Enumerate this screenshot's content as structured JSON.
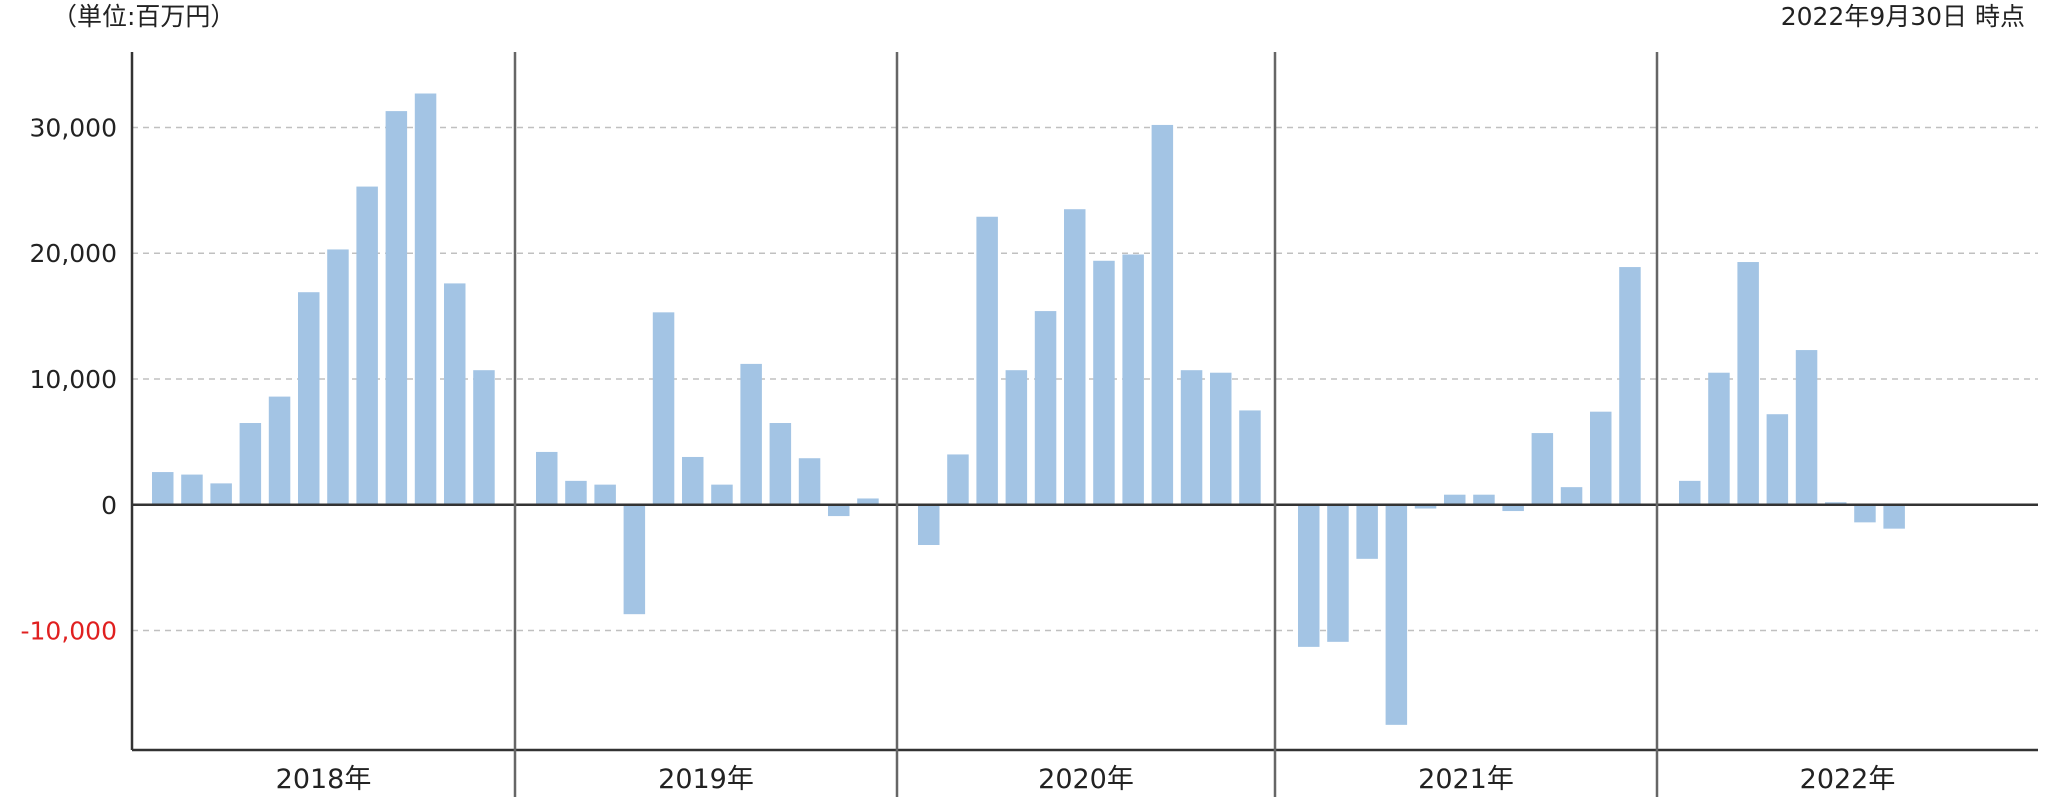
{
  "header": {
    "unit_label": "（単位:百万円）",
    "as_of_label": "2022年9月30日 時点"
  },
  "colors": {
    "bar": "#a3c4e4",
    "axis": "#333333",
    "grid": "#c0c0c0",
    "separator": "#666666",
    "negative_tick": "#e02020",
    "text": "#222222"
  },
  "chart_data": {
    "type": "bar",
    "title": "",
    "xlabel": "",
    "ylabel": "",
    "grid": true,
    "legend": "none",
    "ylim": [
      -19500,
      36000
    ],
    "yticks": [
      {
        "value": 30000,
        "label": "30,000"
      },
      {
        "value": 20000,
        "label": "20,000"
      },
      {
        "value": 10000,
        "label": "10,000"
      },
      {
        "value": 0,
        "label": "0"
      },
      {
        "value": -10000,
        "label": "-10,000"
      }
    ],
    "groups": [
      {
        "label": "2018年",
        "values": [
          2600,
          2400,
          1700,
          6500,
          8600,
          16900,
          20300,
          25300,
          31300,
          32700,
          17600,
          10700
        ]
      },
      {
        "label": "2019年",
        "values": [
          4200,
          1900,
          1600,
          -8700,
          15300,
          3800,
          1600,
          11200,
          6500,
          3700,
          -900,
          500
        ]
      },
      {
        "label": "2020年",
        "values": [
          -3200,
          4000,
          22900,
          10700,
          15400,
          23500,
          19400,
          19900,
          30200,
          10700,
          10500,
          7500
        ]
      },
      {
        "label": "2021年",
        "values": [
          -11300,
          -10900,
          -4300,
          -17500,
          -300,
          800,
          800,
          -500,
          5700,
          1400,
          7400,
          18900
        ]
      },
      {
        "label": "2022年",
        "values": [
          1900,
          10500,
          19300,
          7200,
          12300,
          200,
          -1400,
          -1900
        ]
      }
    ]
  }
}
